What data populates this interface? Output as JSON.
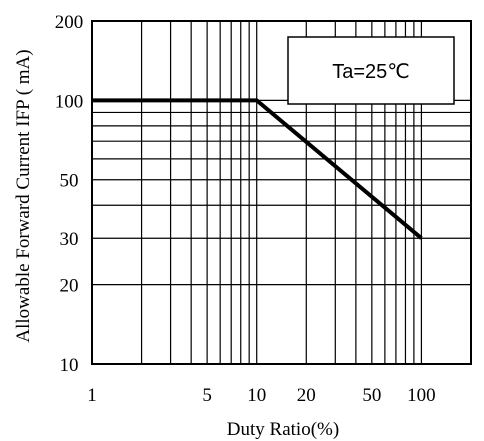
{
  "chart_data": {
    "type": "line",
    "title": "",
    "xlabel": "Duty Ratio(%)",
    "ylabel": "Allowable Forward Current IFP ( mA)",
    "x_scale": "log",
    "y_scale": "log",
    "xlim": [
      1,
      200
    ],
    "ylim": [
      10,
      200
    ],
    "x_ticks": [
      1,
      5,
      10,
      20,
      50,
      100
    ],
    "y_ticks": [
      10,
      20,
      30,
      50,
      100,
      200
    ],
    "grid": true,
    "legend": "none",
    "annotation": "Ta=25℃",
    "series": [
      {
        "x": [
          1,
          10,
          100
        ],
        "y": [
          100,
          100,
          30
        ]
      }
    ]
  }
}
